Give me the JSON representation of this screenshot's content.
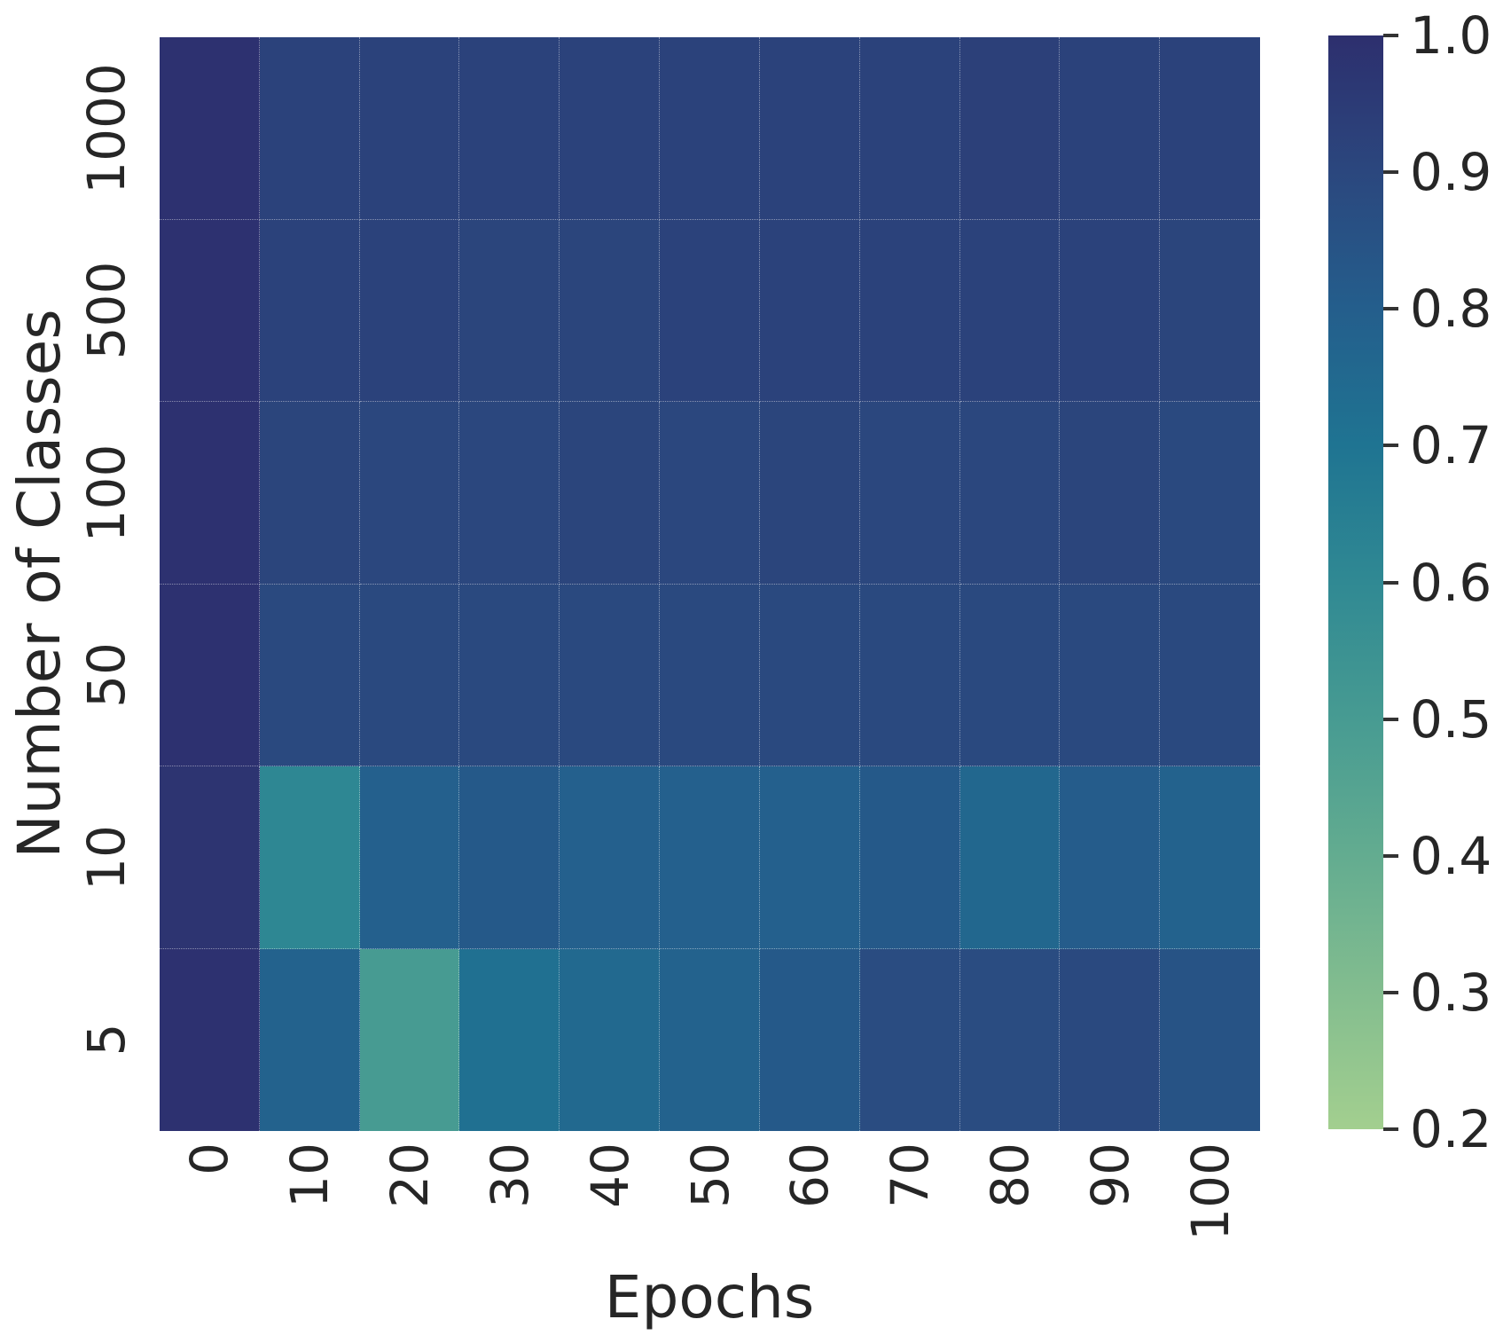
{
  "chart_data": {
    "type": "heatmap",
    "xlabel": "Epochs",
    "ylabel": "Number of Classes",
    "x_categories": [
      "0",
      "10",
      "20",
      "30",
      "40",
      "50",
      "60",
      "70",
      "80",
      "90",
      "100"
    ],
    "y_categories": [
      "1000",
      "500",
      "100",
      "50",
      "10",
      "5"
    ],
    "values": [
      [
        0.99,
        0.92,
        0.92,
        0.92,
        0.92,
        0.92,
        0.92,
        0.92,
        0.93,
        0.92,
        0.92
      ],
      [
        0.99,
        0.92,
        0.92,
        0.91,
        0.91,
        0.92,
        0.92,
        0.92,
        0.92,
        0.92,
        0.91
      ],
      [
        0.99,
        0.91,
        0.9,
        0.9,
        0.91,
        0.9,
        0.91,
        0.9,
        0.9,
        0.91,
        0.89
      ],
      [
        0.99,
        0.89,
        0.89,
        0.89,
        0.89,
        0.89,
        0.89,
        0.89,
        0.89,
        0.89,
        0.89
      ],
      [
        0.98,
        0.61,
        0.79,
        0.82,
        0.79,
        0.79,
        0.79,
        0.82,
        0.76,
        0.81,
        0.78
      ],
      [
        0.99,
        0.78,
        0.5,
        0.72,
        0.75,
        0.78,
        0.82,
        0.88,
        0.88,
        0.89,
        0.85
      ]
    ],
    "vmin": 0.2,
    "vmax": 1.0,
    "grid_on": true,
    "colorbar": {
      "position": "right",
      "tick_labels": [
        "1.0",
        "0.9",
        "0.8",
        "0.7",
        "0.6",
        "0.5",
        "0.4",
        "0.3",
        "0.2"
      ],
      "tick_values": [
        1.0,
        0.9,
        0.8,
        0.7,
        0.6,
        0.5,
        0.4,
        0.3,
        0.2
      ]
    },
    "colormap": {
      "name": "crest",
      "anchors_low_to_high": [
        "#a3cf8f",
        "#83bd8f",
        "#63ac90",
        "#479b92",
        "#308993",
        "#1f7492",
        "#245e8c",
        "#2b477e",
        "#2d2f6e"
      ]
    },
    "text_color": "#262626"
  }
}
